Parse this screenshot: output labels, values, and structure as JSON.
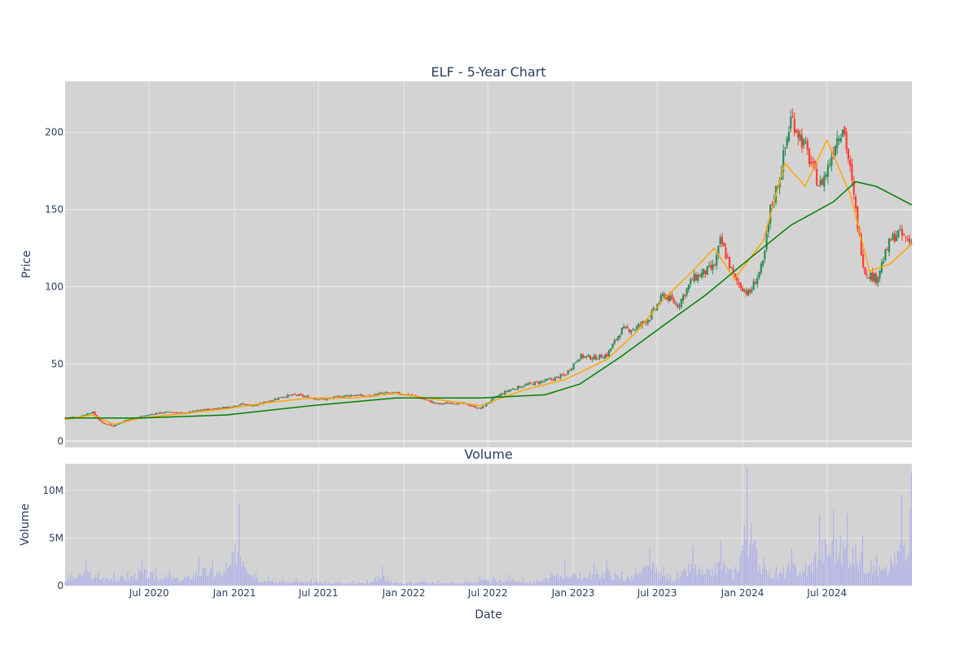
{
  "chart_data": [
    {
      "type": "candlestick",
      "title": "ELF - 5-Year Chart",
      "ylabel": "Price",
      "ylim": [
        -4,
        233
      ],
      "xlim": [
        "2020-01-02",
        "2024-12-31"
      ],
      "x_ticks": [
        "2020-07-01",
        "2021-01-01",
        "2021-07-01",
        "2022-01-01",
        "2022-07-01",
        "2023-01-01",
        "2023-07-01",
        "2024-01-01",
        "2024-07-01"
      ],
      "y_ticks": [
        0,
        50,
        100,
        150,
        200
      ],
      "grid": true,
      "colors": {
        "up": "#2e8b57",
        "down": "#ff3b30",
        "ma_short": "#ffa500",
        "ma_long": "#008000",
        "background": "#d3d3d3"
      },
      "series": [
        {
          "kind": "ohlc-close",
          "x": [
            "2020-01-02",
            "2020-02-01",
            "2020-03-01",
            "2020-03-20",
            "2020-04-15",
            "2020-05-15",
            "2020-06-15",
            "2020-07-15",
            "2020-08-15",
            "2020-09-15",
            "2020-10-15",
            "2020-11-15",
            "2020-12-15",
            "2021-01-15",
            "2021-02-15",
            "2021-03-15",
            "2021-04-15",
            "2021-05-15",
            "2021-06-15",
            "2021-07-15",
            "2021-08-15",
            "2021-09-15",
            "2021-10-15",
            "2021-11-15",
            "2021-12-15",
            "2022-01-15",
            "2022-02-15",
            "2022-03-15",
            "2022-04-15",
            "2022-05-15",
            "2022-06-15",
            "2022-07-15",
            "2022-08-15",
            "2022-09-15",
            "2022-10-15",
            "2022-11-15",
            "2022-12-15",
            "2023-01-15",
            "2023-02-15",
            "2023-03-15",
            "2023-04-15",
            "2023-05-15",
            "2023-06-15",
            "2023-07-15",
            "2023-08-15",
            "2023-09-15",
            "2023-10-15",
            "2023-11-01",
            "2023-11-15",
            "2023-12-15",
            "2024-01-15",
            "2024-02-15",
            "2024-03-01",
            "2024-03-20",
            "2024-04-15",
            "2024-05-15",
            "2024-06-15",
            "2024-07-01",
            "2024-07-20",
            "2024-08-05",
            "2024-08-20",
            "2024-09-05",
            "2024-09-20",
            "2024-10-15",
            "2024-11-15",
            "2024-12-01",
            "2024-12-31"
          ],
          "close": [
            15,
            16,
            19,
            12,
            10,
            14,
            16,
            18,
            19,
            18,
            20,
            21,
            22,
            24,
            23,
            26,
            29,
            30,
            28,
            27,
            29,
            30,
            29,
            31,
            31,
            30,
            27,
            24,
            25,
            24,
            21,
            28,
            33,
            36,
            38,
            40,
            43,
            55,
            54,
            56,
            72,
            73,
            80,
            95,
            88,
            105,
            110,
            113,
            130,
            105,
            95,
            115,
            150,
            170,
            210,
            190,
            165,
            175,
            195,
            205,
            175,
            140,
            110,
            105,
            130,
            135,
            128
          ]
        },
        {
          "kind": "moving-average",
          "x": [
            "2020-01-02",
            "2020-03-01",
            "2020-04-15",
            "2020-06-15",
            "2020-09-15",
            "2020-12-15",
            "2021-03-15",
            "2021-06-15",
            "2021-09-15",
            "2021-12-15",
            "2022-03-15",
            "2022-06-15",
            "2022-09-15",
            "2022-12-15",
            "2023-03-15",
            "2023-05-15",
            "2023-07-15",
            "2023-09-15",
            "2023-11-01",
            "2023-12-15",
            "2024-02-15",
            "2024-04-01",
            "2024-05-15",
            "2024-07-01",
            "2024-08-20",
            "2024-10-01",
            "2024-11-15",
            "2024-12-31"
          ],
          "values": [
            14,
            17,
            11,
            15,
            18,
            21,
            25,
            28,
            28,
            31,
            27,
            23,
            33,
            40,
            53,
            70,
            92,
            110,
            125,
            105,
            130,
            180,
            165,
            195,
            160,
            110,
            115,
            128
          ]
        },
        {
          "kind": "moving-average",
          "x": [
            "2020-01-02",
            "2020-06-15",
            "2020-12-15",
            "2021-06-15",
            "2021-12-15",
            "2022-06-15",
            "2022-11-01",
            "2023-01-15",
            "2023-04-15",
            "2023-07-15",
            "2023-10-15",
            "2024-01-15",
            "2024-04-15",
            "2024-07-15",
            "2024-09-01",
            "2024-10-15",
            "2024-12-31"
          ],
          "values": [
            15,
            15,
            17,
            23,
            28,
            28,
            30,
            37,
            55,
            75,
            95,
            118,
            140,
            155,
            168,
            165,
            153
          ]
        }
      ]
    },
    {
      "type": "bar",
      "title": "Volume",
      "xlabel": "Date",
      "ylabel": "Volume",
      "ylim": [
        0,
        12800000
      ],
      "y_ticks": [
        0,
        5000000,
        10000000
      ],
      "y_tick_labels": [
        "0",
        "5M",
        "10M"
      ],
      "x_ticks": [
        "2020-07-01",
        "2021-01-01",
        "2021-07-01",
        "2022-01-01",
        "2022-07-01",
        "2023-01-01",
        "2023-07-01",
        "2024-01-01",
        "2024-07-01"
      ],
      "x_tick_labels": [
        "Jul 2020",
        "Jan 2021",
        "Jul 2021",
        "Jan 2022",
        "Jul 2022",
        "Jan 2023",
        "Jul 2023",
        "Jan 2024",
        "Jul 2024"
      ],
      "grid": true,
      "colors": {
        "bar": "#aaaaee",
        "background": "#d3d3d3"
      },
      "x": [
        "2020-01-15",
        "2020-02-15",
        "2020-03-15",
        "2020-04-15",
        "2020-05-15",
        "2020-06-15",
        "2020-07-15",
        "2020-08-15",
        "2020-09-15",
        "2020-10-15",
        "2020-11-15",
        "2020-12-15",
        "2021-01-10",
        "2021-02-15",
        "2021-03-15",
        "2021-04-15",
        "2021-05-15",
        "2021-06-15",
        "2021-07-15",
        "2021-08-15",
        "2021-09-15",
        "2021-10-15",
        "2021-11-15",
        "2021-12-15",
        "2022-01-15",
        "2022-02-15",
        "2022-03-15",
        "2022-04-15",
        "2022-05-15",
        "2022-06-15",
        "2022-07-15",
        "2022-08-15",
        "2022-09-15",
        "2022-10-15",
        "2022-11-15",
        "2022-12-15",
        "2023-01-15",
        "2023-02-15",
        "2023-03-15",
        "2023-04-15",
        "2023-05-15",
        "2023-06-15",
        "2023-07-15",
        "2023-08-15",
        "2023-09-15",
        "2023-10-15",
        "2023-11-15",
        "2023-12-15",
        "2024-01-10",
        "2024-02-15",
        "2024-03-15",
        "2024-04-15",
        "2024-05-15",
        "2024-06-15",
        "2024-07-15",
        "2024-08-15",
        "2024-09-15",
        "2024-10-15",
        "2024-11-15",
        "2024-12-10",
        "2024-12-31"
      ],
      "values": [
        1200000,
        2600000,
        1500000,
        1400000,
        1600000,
        2800000,
        1800000,
        1700000,
        1000000,
        3000000,
        2700000,
        2500000,
        8600000,
        1500000,
        900000,
        700000,
        800000,
        700000,
        600000,
        500000,
        500000,
        600000,
        2000000,
        600000,
        500000,
        700000,
        500000,
        500000,
        600000,
        1000000,
        900000,
        1200000,
        800000,
        700000,
        1500000,
        2800000,
        1500000,
        2500000,
        2800000,
        1500000,
        1800000,
        4000000,
        2000000,
        1500000,
        4200000,
        2000000,
        4800000,
        2000000,
        12300000,
        3000000,
        2000000,
        4000000,
        2500000,
        7500000,
        8000000,
        7600000,
        5200000,
        3200000,
        3000000,
        9500000,
        11800000
      ]
    }
  ]
}
